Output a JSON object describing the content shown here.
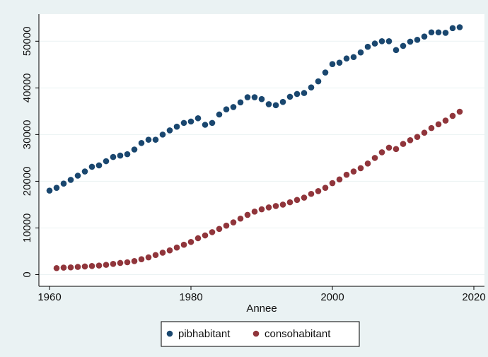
{
  "chart_data": {
    "type": "scatter",
    "x_label": "Annee",
    "x": [
      1960,
      1961,
      1962,
      1963,
      1964,
      1965,
      1966,
      1967,
      1968,
      1969,
      1970,
      1971,
      1972,
      1973,
      1974,
      1975,
      1976,
      1977,
      1978,
      1979,
      1980,
      1981,
      1982,
      1983,
      1984,
      1985,
      1986,
      1987,
      1988,
      1989,
      1990,
      1991,
      1992,
      1993,
      1994,
      1995,
      1996,
      1997,
      1998,
      1999,
      2000,
      2001,
      2002,
      2003,
      2004,
      2005,
      2006,
      2007,
      2008,
      2009,
      2010,
      2011,
      2012,
      2013,
      2014,
      2015,
      2016,
      2017,
      2018
    ],
    "series": [
      {
        "name": "pibhabitant",
        "color": "#1a476f",
        "values": [
          18000,
          18600,
          19500,
          20300,
          21200,
          22100,
          23100,
          23400,
          24300,
          25200,
          25500,
          25800,
          26800,
          28200,
          28900,
          28900,
          30000,
          30900,
          31700,
          32500,
          32800,
          33500,
          32100,
          32500,
          34300,
          35400,
          35900,
          36900,
          38000,
          38000,
          37600,
          36500,
          36300,
          37000,
          38100,
          38700,
          38900,
          40100,
          41400,
          43300,
          45100,
          45400,
          46300,
          46600,
          47600,
          48800,
          49500,
          50000,
          50000,
          48100,
          49000,
          49900,
          50300,
          51000,
          51900,
          51900,
          51800,
          52800,
          53000
        ]
      },
      {
        "name": "consohabitant",
        "color": "#90353b",
        "values": [
          null,
          1400,
          1500,
          1550,
          1650,
          1750,
          1850,
          1950,
          2100,
          2300,
          2500,
          2650,
          2900,
          3300,
          3700,
          4200,
          4700,
          5200,
          5800,
          6400,
          7000,
          7800,
          8400,
          9100,
          9800,
          10500,
          11200,
          12000,
          12800,
          13500,
          14000,
          14400,
          14700,
          15000,
          15500,
          16000,
          16500,
          17300,
          17900,
          18600,
          19600,
          20400,
          21400,
          22100,
          22800,
          23800,
          25000,
          26200,
          27200,
          26900,
          28000,
          28800,
          29500,
          30400,
          31400,
          32200,
          33000,
          34000,
          34900
        ]
      }
    ],
    "xlim": [
      1958.5,
      2021.5
    ],
    "xticks": [
      1960,
      1980,
      2000,
      2020
    ],
    "ylim": [
      -2500,
      55800
    ],
    "yticks": [
      0,
      10000,
      20000,
      30000,
      40000,
      50000
    ],
    "grid": true,
    "legend": "bottom"
  }
}
